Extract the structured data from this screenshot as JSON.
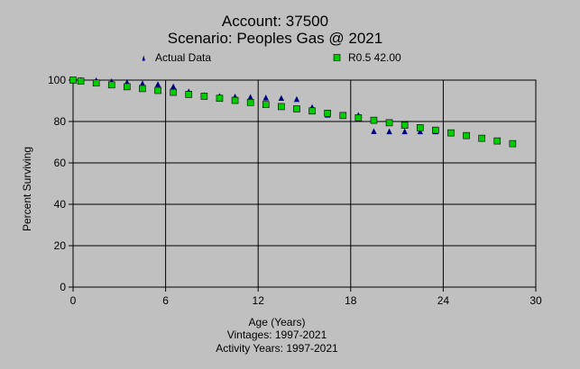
{
  "chart_data": {
    "type": "scatter",
    "title": "Account: 37500",
    "subtitle": "Scenario: Peoples Gas @ 2021",
    "xlabel": "Age (Years)",
    "ylabel": "Percent Surviving",
    "footnotes": [
      "Vintages: 1997-2021",
      "Activity Years: 1997-2021"
    ],
    "xlim": [
      0,
      30
    ],
    "ylim": [
      0,
      100
    ],
    "xticks": [
      0,
      6,
      12,
      18,
      24,
      30
    ],
    "yticks": [
      0,
      20,
      40,
      60,
      80,
      100
    ],
    "grid": true,
    "legend_position": "top",
    "series": [
      {
        "name": "Actual Data",
        "marker": "triangle",
        "color": "#000080",
        "x": [
          0,
          0.5,
          1.5,
          2.5,
          3.5,
          4.5,
          5.5,
          6.5,
          7.5,
          8.5,
          9.5,
          10.5,
          11.5,
          12.5,
          13.5,
          14.5,
          15.5,
          16.5,
          17.5,
          18.5,
          19.5,
          20.5,
          21.5,
          22.5,
          23.5
        ],
        "y": [
          100,
          100,
          99.8,
          99.3,
          98.8,
          98.3,
          97.9,
          96.8,
          94.4,
          92.6,
          92.2,
          91.9,
          91.7,
          91.4,
          91.2,
          90.7,
          86.8,
          83.1,
          83.0,
          83.0,
          75.2,
          75.1,
          75.1,
          75.1,
          75.1
        ]
      },
      {
        "name": "R0.5 42.00",
        "marker": "square",
        "color": "#00cc00",
        "x": [
          0,
          0.5,
          1.5,
          2.5,
          3.5,
          4.5,
          5.5,
          6.5,
          7.5,
          8.5,
          9.5,
          10.5,
          11.5,
          12.5,
          13.5,
          14.5,
          15.5,
          16.5,
          17.5,
          18.5,
          19.5,
          20.5,
          21.5,
          22.5,
          23.5,
          24.5,
          25.5,
          26.5,
          27.5,
          28.5
        ],
        "y": [
          100,
          99.5,
          98.6,
          97.7,
          96.8,
          95.9,
          95.0,
          94.1,
          93.1,
          92.2,
          91.2,
          90.2,
          89.2,
          88.2,
          87.2,
          86.1,
          85.1,
          84.0,
          82.9,
          81.8,
          80.6,
          79.4,
          78.2,
          77.0,
          75.8,
          74.5,
          73.2,
          71.9,
          70.6,
          69.3
        ]
      }
    ]
  }
}
